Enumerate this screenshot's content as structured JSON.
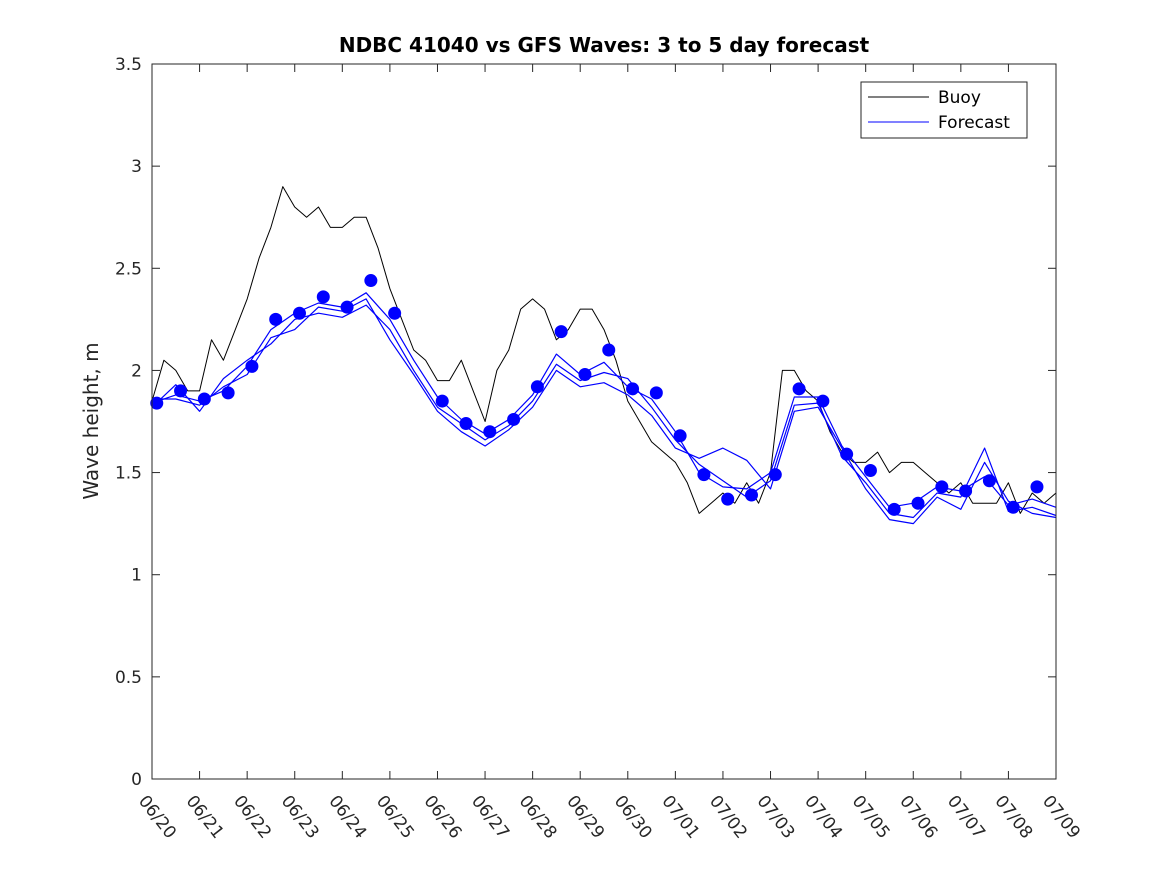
{
  "chart_data": {
    "type": "line",
    "title": "NDBC 41040 vs GFS Waves: 3 to 5 day forecast",
    "xlabel": "",
    "ylabel": "Wave height, m",
    "x_unit": "days",
    "xlim": [
      0,
      19
    ],
    "ylim": [
      0,
      3.5
    ],
    "yticks": [
      0,
      0.5,
      1,
      1.5,
      2,
      2.5,
      3,
      3.5
    ],
    "ytick_labels": [
      "0",
      "0.5",
      "1",
      "1.5",
      "2",
      "2.5",
      "3",
      "3.5"
    ],
    "xticks": [
      0,
      1,
      2,
      3,
      4,
      5,
      6,
      7,
      8,
      9,
      10,
      11,
      12,
      13,
      14,
      15,
      16,
      17,
      18,
      19
    ],
    "xtick_labels": [
      "06/20",
      "06/21",
      "06/22",
      "06/23",
      "06/24",
      "06/25",
      "06/26",
      "06/27",
      "06/28",
      "06/29",
      "06/30",
      "07/01",
      "07/02",
      "07/03",
      "07/04",
      "07/05",
      "07/06",
      "07/07",
      "07/08",
      "07/09"
    ],
    "grid": false,
    "legend": {
      "placement": "top-right",
      "entries": [
        "Buoy",
        "Forecast"
      ]
    },
    "colors": {
      "buoy": "#000000",
      "forecast": "#0000ff",
      "axes": "#262626"
    },
    "series": [
      {
        "name": "Buoy",
        "x": [
          0,
          0.25,
          0.5,
          0.75,
          1,
          1.25,
          1.5,
          1.75,
          2,
          2.25,
          2.5,
          2.75,
          3,
          3.25,
          3.5,
          3.75,
          4,
          4.25,
          4.5,
          4.75,
          5,
          5.25,
          5.5,
          5.75,
          6,
          6.25,
          6.5,
          6.75,
          7,
          7.25,
          7.5,
          7.75,
          8,
          8.25,
          8.5,
          8.75,
          9,
          9.25,
          9.5,
          9.75,
          10,
          10.25,
          10.5,
          10.75,
          11,
          11.25,
          11.5,
          11.75,
          12,
          12.25,
          12.5,
          12.75,
          13,
          13.25,
          13.5,
          13.75,
          14,
          14.25,
          14.5,
          14.75,
          15,
          15.25,
          15.5,
          15.75,
          16,
          16.25,
          16.5,
          16.75,
          17,
          17.25,
          17.5,
          17.75,
          18,
          18.25,
          18.5,
          18.75,
          19
        ],
        "values": [
          1.85,
          2.05,
          2.0,
          1.9,
          1.9,
          2.15,
          2.05,
          2.2,
          2.35,
          2.55,
          2.7,
          2.9,
          2.8,
          2.75,
          2.8,
          2.7,
          2.7,
          2.75,
          2.75,
          2.6,
          2.4,
          2.25,
          2.1,
          2.05,
          1.95,
          1.95,
          2.05,
          1.9,
          1.75,
          2.0,
          2.1,
          2.3,
          2.35,
          2.3,
          2.15,
          2.2,
          2.3,
          2.3,
          2.2,
          2.05,
          1.85,
          1.75,
          1.65,
          1.6,
          1.55,
          1.45,
          1.3,
          1.35,
          1.4,
          1.35,
          1.45,
          1.35,
          1.5,
          2.0,
          2.0,
          1.9,
          1.85,
          1.7,
          1.6,
          1.55,
          1.55,
          1.6,
          1.5,
          1.55,
          1.55,
          1.5,
          1.45,
          1.4,
          1.45,
          1.35,
          1.35,
          1.35,
          1.45,
          1.3,
          1.4,
          1.35,
          1.4
        ]
      },
      {
        "name": "Forecast",
        "x": [
          0,
          0.5,
          1,
          1.5,
          2,
          2.5,
          3,
          3.5,
          4,
          4.5,
          5,
          5.5,
          6,
          6.5,
          7,
          7.5,
          8,
          8.5,
          9,
          9.5,
          10,
          10.5,
          11,
          11.5,
          12,
          12.5,
          13,
          13.5,
          14,
          14.5,
          15,
          15.5,
          16,
          16.5,
          17,
          17.5,
          18,
          18.5,
          19
        ],
        "values": [
          1.84,
          1.88,
          1.85,
          1.9,
          2.02,
          2.2,
          2.28,
          2.33,
          2.31,
          2.38,
          2.25,
          2.05,
          1.87,
          1.76,
          1.69,
          1.76,
          1.88,
          2.08,
          1.98,
          2.04,
          1.92,
          1.86,
          1.7,
          1.5,
          1.43,
          1.42,
          1.5,
          1.87,
          1.87,
          1.63,
          1.48,
          1.33,
          1.35,
          1.43,
          1.41,
          1.48,
          1.34,
          1.37,
          1.33
        ]
      },
      {
        "name": "",
        "x": [
          0,
          0.5,
          1,
          1.5,
          2,
          2.5,
          3,
          3.5,
          4,
          4.5,
          5,
          5.5,
          6,
          6.5,
          7,
          7.5,
          8,
          8.5,
          9,
          9.5,
          10,
          10.5,
          11,
          11.5,
          12,
          12.5,
          13,
          13.5,
          14,
          14.5,
          15,
          15.5,
          16,
          16.5,
          17,
          17.5,
          18,
          18.5,
          19
        ],
        "values": [
          1.82,
          1.93,
          1.8,
          1.96,
          2.05,
          2.13,
          2.25,
          2.28,
          2.26,
          2.32,
          2.2,
          2.0,
          1.82,
          1.74,
          1.66,
          1.73,
          1.85,
          2.03,
          1.95,
          1.99,
          1.96,
          1.82,
          1.66,
          1.54,
          1.46,
          1.38,
          1.46,
          1.83,
          1.84,
          1.58,
          1.45,
          1.3,
          1.28,
          1.4,
          1.38,
          1.62,
          1.31,
          1.33,
          1.29
        ]
      },
      {
        "name": "",
        "x": [
          0,
          0.5,
          1,
          1.5,
          2,
          2.5,
          3,
          3.5,
          4,
          4.5,
          5,
          5.5,
          6,
          6.5,
          7,
          7.5,
          8,
          8.5,
          9,
          9.5,
          10,
          10.5,
          11,
          11.5,
          12,
          12.5,
          13,
          13.5,
          14,
          14.5,
          15,
          15.5,
          16,
          16.5,
          17,
          17.5,
          18,
          18.5,
          19
        ],
        "values": [
          1.86,
          1.86,
          1.83,
          1.92,
          1.98,
          2.16,
          2.2,
          2.31,
          2.29,
          2.35,
          2.15,
          1.98,
          1.8,
          1.7,
          1.63,
          1.71,
          1.82,
          2.0,
          1.92,
          1.94,
          1.88,
          1.78,
          1.62,
          1.57,
          1.62,
          1.56,
          1.42,
          1.8,
          1.82,
          1.62,
          1.42,
          1.27,
          1.25,
          1.38,
          1.32,
          1.55,
          1.36,
          1.3,
          1.28
        ]
      }
    ],
    "markers": {
      "series": "Forecast",
      "x": [
        0.1,
        0.6,
        1.1,
        1.6,
        2.1,
        2.6,
        3.1,
        3.6,
        4.1,
        4.6,
        5.1,
        6.1,
        6.6,
        7.1,
        7.6,
        8.1,
        8.6,
        9.1,
        9.6,
        10.1,
        10.6,
        11.1,
        11.6,
        12.1,
        12.6,
        13.1,
        13.6,
        14.1,
        14.6,
        15.1,
        15.6,
        16.1,
        16.6,
        17.1,
        17.6,
        18.1,
        18.6
      ],
      "values": [
        1.84,
        1.9,
        1.86,
        1.89,
        2.02,
        2.25,
        2.28,
        2.36,
        2.31,
        2.44,
        2.28,
        1.85,
        1.74,
        1.7,
        1.76,
        1.92,
        2.19,
        1.98,
        2.1,
        1.91,
        1.89,
        1.68,
        1.49,
        1.37,
        1.39,
        1.49,
        1.91,
        1.85,
        1.59,
        1.51,
        1.32,
        1.35,
        1.43,
        1.41,
        1.46,
        1.33,
        1.43
      ]
    }
  }
}
